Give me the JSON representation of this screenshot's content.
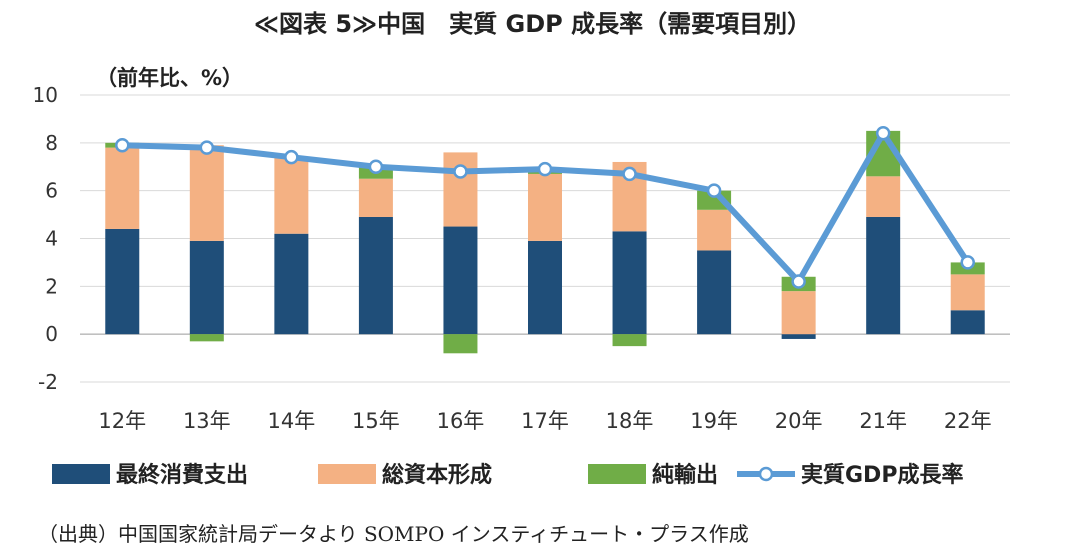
{
  "title": "≪図表 5≫中国　実質 GDP 成長率（需要項目別）",
  "unit_label": "（前年比、%）",
  "source_note": "（出典）中国国家統計局データより SOMPO インスティチュート・プラス作成",
  "chart_data": {
    "type": "bar",
    "stacked": true,
    "categories": [
      "12年",
      "13年",
      "14年",
      "15年",
      "16年",
      "17年",
      "18年",
      "19年",
      "20年",
      "21年",
      "22年"
    ],
    "ylim": [
      -2,
      10
    ],
    "yticks": [
      10,
      8,
      6,
      4,
      2,
      0,
      -2
    ],
    "grid": true,
    "legend_position": "bottom",
    "series": [
      {
        "name": "最終消費支出",
        "type": "bar",
        "color": "#1f4e79",
        "values": [
          4.4,
          3.9,
          4.2,
          4.9,
          4.5,
          3.9,
          4.3,
          3.5,
          -0.2,
          4.9,
          1.0
        ]
      },
      {
        "name": "総資本形成",
        "type": "bar",
        "color": "#f4b183",
        "values": [
          3.4,
          4.0,
          3.2,
          1.6,
          3.1,
          2.8,
          2.9,
          1.7,
          1.8,
          1.7,
          1.5
        ]
      },
      {
        "name": "純輸出",
        "type": "bar",
        "color": "#70ad47",
        "values": [
          0.2,
          -0.3,
          0.0,
          0.5,
          -0.8,
          0.2,
          -0.5,
          0.8,
          0.6,
          1.9,
          0.5
        ]
      },
      {
        "name": "実質GDP成長率",
        "type": "line",
        "color": "#5b9bd5",
        "values": [
          7.9,
          7.8,
          7.4,
          7.0,
          6.8,
          6.9,
          6.7,
          6.0,
          2.2,
          8.4,
          3.0
        ]
      }
    ]
  }
}
